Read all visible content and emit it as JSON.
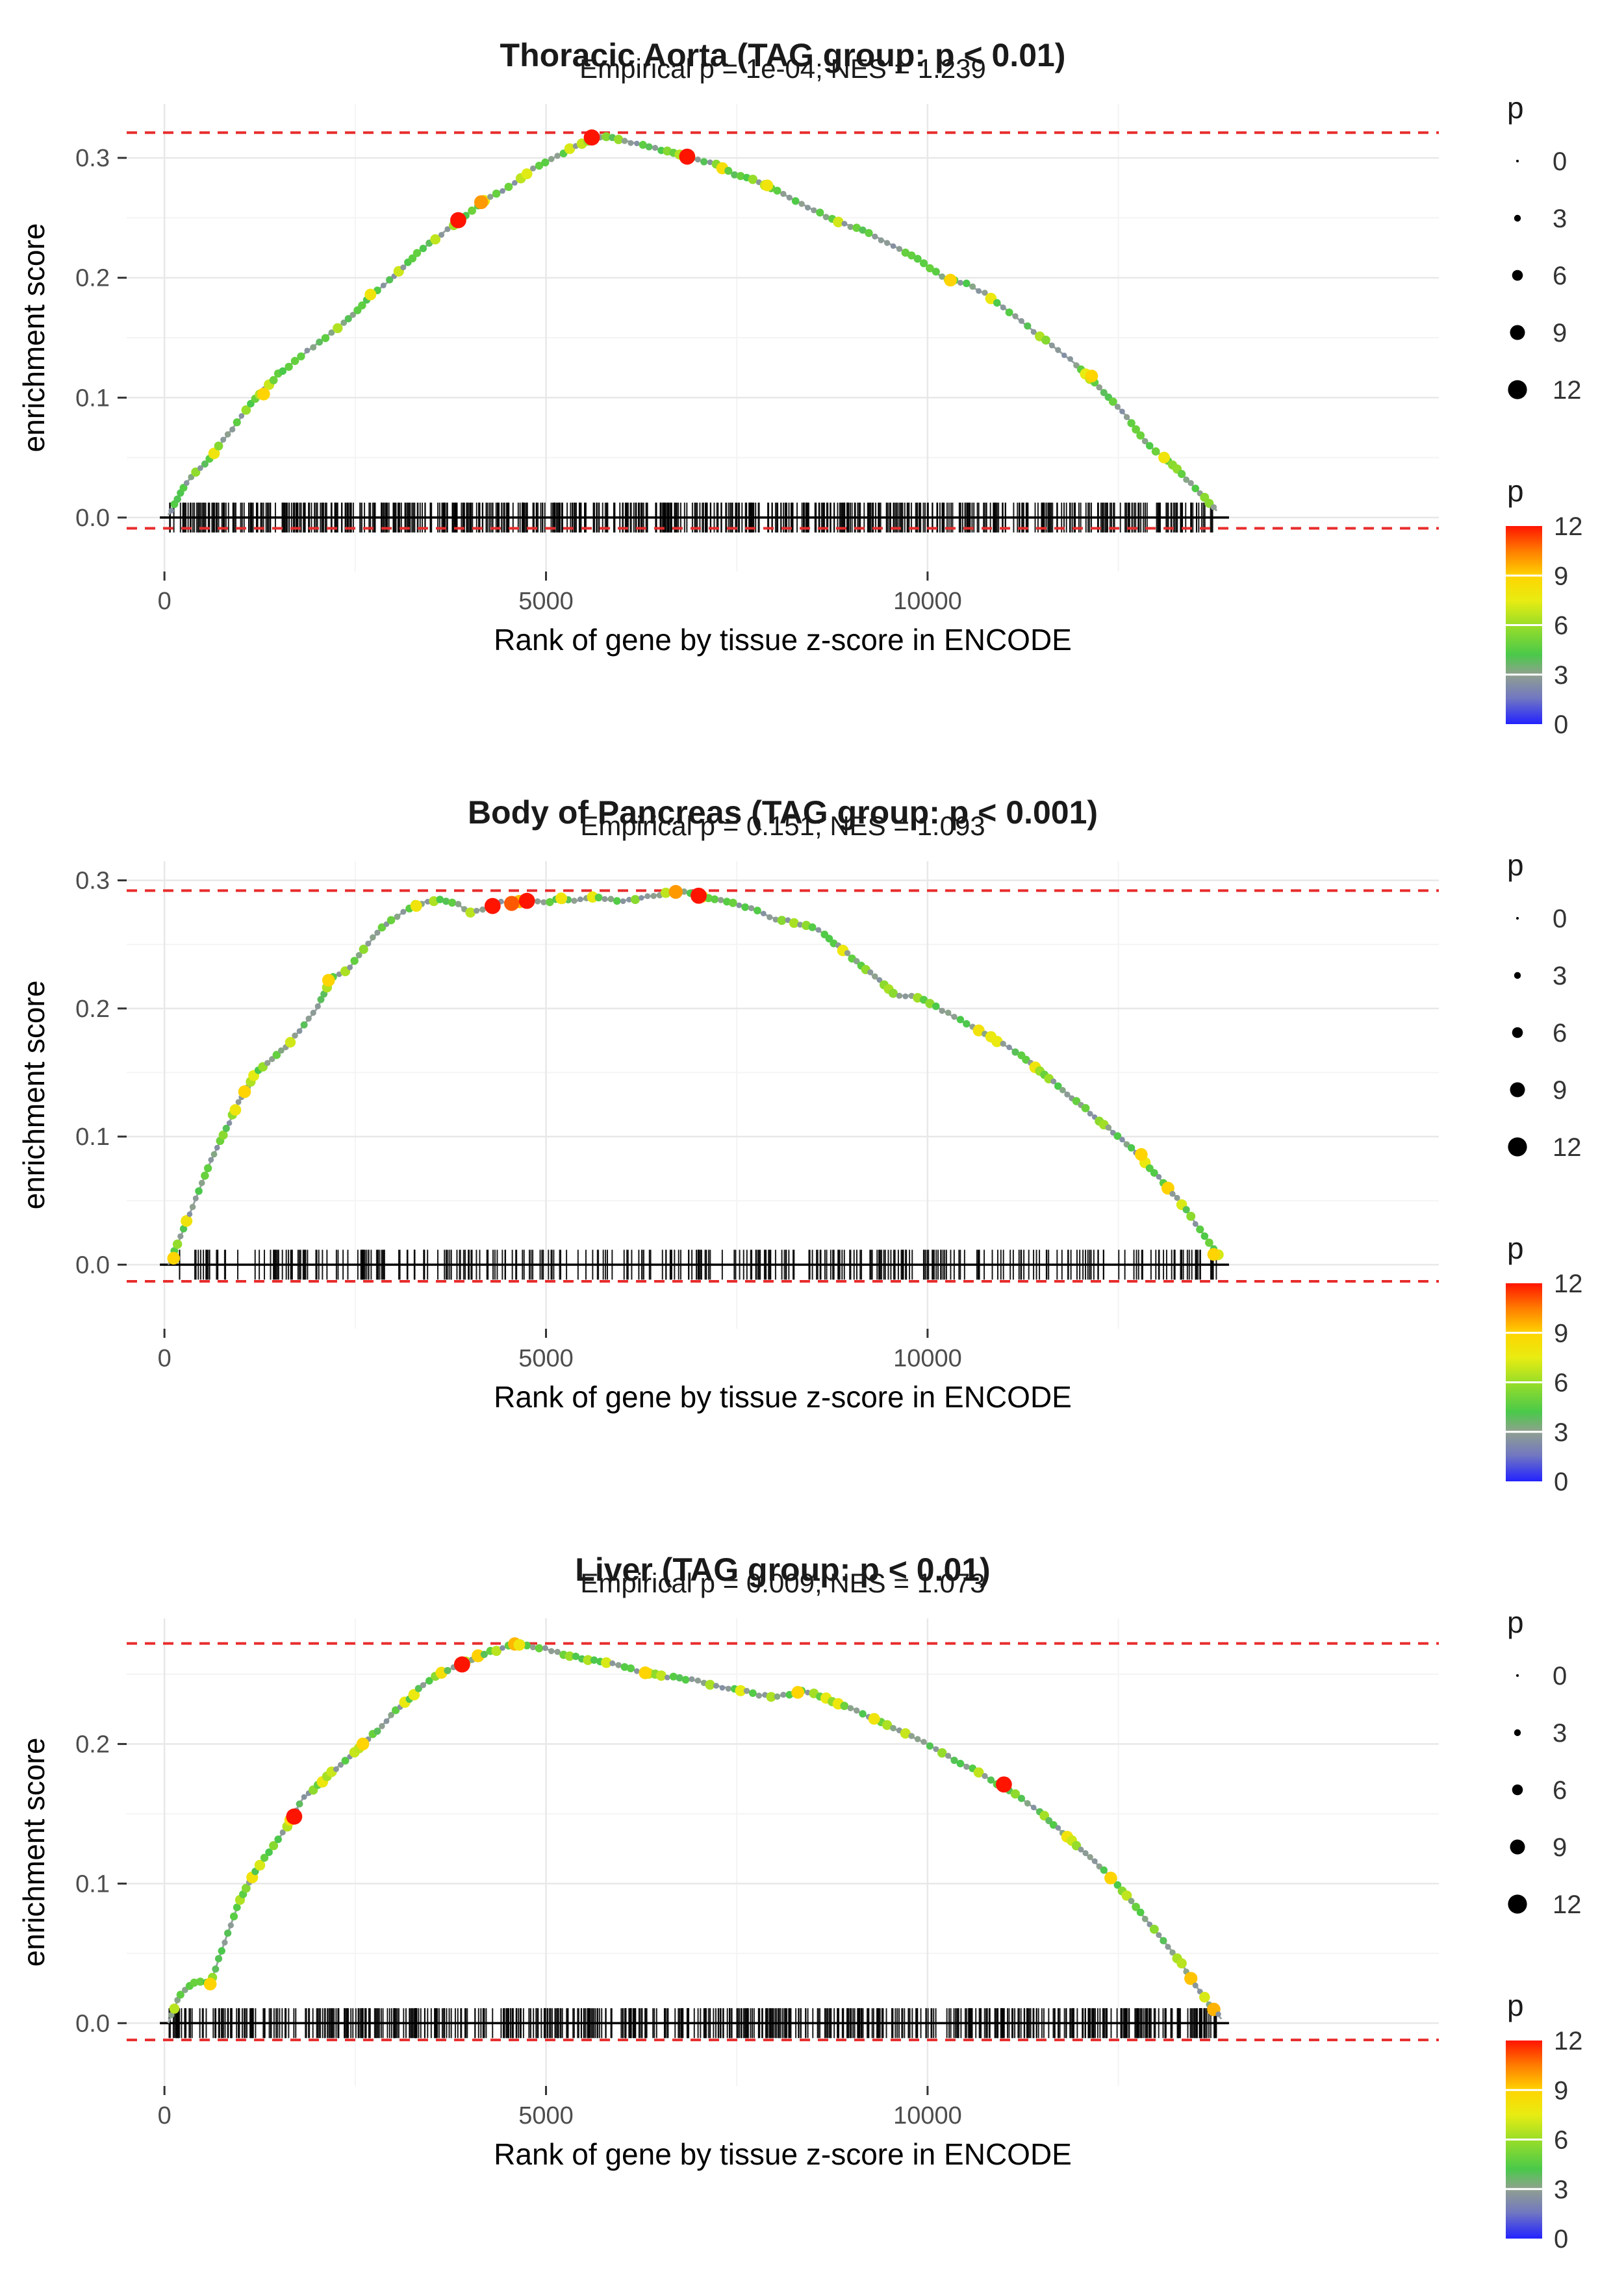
{
  "legend_size": {
    "title": "p",
    "values": [
      0,
      3,
      6,
      9,
      12
    ]
  },
  "legend_color": {
    "title": "p",
    "ticks": [
      12,
      9,
      6,
      3,
      0
    ],
    "stops": [
      {
        "v": 0,
        "c": "#2222ff"
      },
      {
        "v": 1.6,
        "c": "#7278c0"
      },
      {
        "v": 3,
        "c": "#90a090"
      },
      {
        "v": 4.2,
        "c": "#4ac94a"
      },
      {
        "v": 6,
        "c": "#9ade28"
      },
      {
        "v": 7.5,
        "c": "#e8ec12"
      },
      {
        "v": 9,
        "c": "#ffd400"
      },
      {
        "v": 10.5,
        "c": "#ff7c00"
      },
      {
        "v": 12,
        "c": "#ff1400"
      }
    ]
  },
  "style": {
    "dashed_line_color": "#e82c2c",
    "curve_line_color": "#9aa3a3",
    "grid_major_color": "#e8e8e8",
    "grid_minor_color": "#f4f4f4",
    "rug_color": "#000000"
  },
  "chart_data": [
    {
      "type": "line",
      "title": "Thoracic Aorta (TAG group: p < 0.01)",
      "subtitle": "Empirical p = 1e-04; NES = 1.239",
      "xlabel": "Rank of gene by tissue z-score in ENCODE",
      "ylabel": "enrichment score",
      "xticks": [
        0,
        5000,
        10000
      ],
      "yticks": [
        0.0,
        0.1,
        0.2,
        0.3
      ],
      "xlim": [
        -495,
        16700
      ],
      "ylim": [
        -0.045,
        0.345
      ],
      "hline_top": 0.321,
      "hline_bottom": -0.009,
      "rug": {
        "seed": 101,
        "count": 700
      },
      "dot_seed": 7,
      "curve": [
        [
          50,
          0.002
        ],
        [
          300,
          0.03
        ],
        [
          600,
          0.05
        ],
        [
          900,
          0.075
        ],
        [
          1200,
          0.1
        ],
        [
          1500,
          0.12
        ],
        [
          1800,
          0.135
        ],
        [
          2100,
          0.15
        ],
        [
          2400,
          0.165
        ],
        [
          2700,
          0.185
        ],
        [
          3000,
          0.2
        ],
        [
          3300,
          0.22
        ],
        [
          3600,
          0.235
        ],
        [
          3900,
          0.25
        ],
        [
          4200,
          0.265
        ],
        [
          4500,
          0.275
        ],
        [
          4800,
          0.29
        ],
        [
          5100,
          0.3
        ],
        [
          5400,
          0.31
        ],
        [
          5700,
          0.318
        ],
        [
          6000,
          0.315
        ],
        [
          6300,
          0.31
        ],
        [
          6600,
          0.305
        ],
        [
          6900,
          0.3
        ],
        [
          7200,
          0.295
        ],
        [
          7500,
          0.285
        ],
        [
          7800,
          0.28
        ],
        [
          8100,
          0.27
        ],
        [
          8400,
          0.26
        ],
        [
          8700,
          0.25
        ],
        [
          9000,
          0.243
        ],
        [
          9300,
          0.235
        ],
        [
          9600,
          0.225
        ],
        [
          9900,
          0.215
        ],
        [
          10200,
          0.2
        ],
        [
          10500,
          0.195
        ],
        [
          10800,
          0.185
        ],
        [
          11100,
          0.17
        ],
        [
          11400,
          0.155
        ],
        [
          11700,
          0.14
        ],
        [
          12000,
          0.125
        ],
        [
          12300,
          0.105
        ],
        [
          12600,
          0.085
        ],
        [
          12900,
          0.06
        ],
        [
          13200,
          0.045
        ],
        [
          13500,
          0.025
        ],
        [
          13800,
          0.005
        ]
      ],
      "markers": [
        {
          "x": 1300,
          "y": 0.103,
          "p": 9
        },
        {
          "x": 2700,
          "y": 0.186,
          "p": 8
        },
        {
          "x": 3850,
          "y": 0.248,
          "p": 12
        },
        {
          "x": 4150,
          "y": 0.263,
          "p": 10
        },
        {
          "x": 5600,
          "y": 0.317,
          "p": 12
        },
        {
          "x": 6850,
          "y": 0.301,
          "p": 12
        },
        {
          "x": 7900,
          "y": 0.277,
          "p": 8
        },
        {
          "x": 10300,
          "y": 0.198,
          "p": 9
        },
        {
          "x": 12150,
          "y": 0.118,
          "p": 9
        },
        {
          "x": 13100,
          "y": 0.05,
          "p": 8
        }
      ]
    },
    {
      "type": "line",
      "title": "Body of Pancreas (TAG group: p < 0.001)",
      "subtitle": "Empirical p = 0.151; NES = 1.093",
      "xlabel": "Rank of gene by tissue z-score in ENCODE",
      "ylabel": "enrichment score",
      "xticks": [
        0,
        5000,
        10000
      ],
      "yticks": [
        0.0,
        0.1,
        0.2,
        0.3
      ],
      "xlim": [
        -495,
        16700
      ],
      "ylim": [
        -0.05,
        0.315
      ],
      "hline_top": 0.292,
      "hline_bottom": -0.013,
      "rug": {
        "seed": 202,
        "count": 340
      },
      "dot_seed": 8,
      "curve": [
        [
          50,
          0.0
        ],
        [
          200,
          0.02
        ],
        [
          400,
          0.05
        ],
        [
          600,
          0.08
        ],
        [
          800,
          0.105
        ],
        [
          1000,
          0.13
        ],
        [
          1200,
          0.15
        ],
        [
          1400,
          0.16
        ],
        [
          1600,
          0.17
        ],
        [
          1800,
          0.185
        ],
        [
          2000,
          0.2
        ],
        [
          2200,
          0.225
        ],
        [
          2400,
          0.23
        ],
        [
          2600,
          0.245
        ],
        [
          2800,
          0.26
        ],
        [
          3000,
          0.27
        ],
        [
          3200,
          0.278
        ],
        [
          3400,
          0.283
        ],
        [
          3600,
          0.285
        ],
        [
          3800,
          0.283
        ],
        [
          4000,
          0.275
        ],
        [
          4200,
          0.278
        ],
        [
          4400,
          0.283
        ],
        [
          4600,
          0.282
        ],
        [
          4800,
          0.285
        ],
        [
          5000,
          0.283
        ],
        [
          5200,
          0.286
        ],
        [
          5400,
          0.284
        ],
        [
          5600,
          0.287
        ],
        [
          5800,
          0.285
        ],
        [
          6000,
          0.284
        ],
        [
          6200,
          0.286
        ],
        [
          6400,
          0.288
        ],
        [
          6600,
          0.29
        ],
        [
          6800,
          0.292
        ],
        [
          7000,
          0.288
        ],
        [
          7200,
          0.285
        ],
        [
          7400,
          0.283
        ],
        [
          7600,
          0.28
        ],
        [
          7800,
          0.275
        ],
        [
          8000,
          0.27
        ],
        [
          8200,
          0.268
        ],
        [
          8400,
          0.265
        ],
        [
          8600,
          0.26
        ],
        [
          8800,
          0.25
        ],
        [
          9000,
          0.24
        ],
        [
          9200,
          0.23
        ],
        [
          9400,
          0.22
        ],
        [
          9600,
          0.21
        ],
        [
          9800,
          0.21
        ],
        [
          10000,
          0.205
        ],
        [
          10300,
          0.195
        ],
        [
          10600,
          0.185
        ],
        [
          10900,
          0.175
        ],
        [
          11200,
          0.165
        ],
        [
          11500,
          0.15
        ],
        [
          11800,
          0.135
        ],
        [
          12100,
          0.12
        ],
        [
          12400,
          0.105
        ],
        [
          12700,
          0.09
        ],
        [
          13000,
          0.07
        ],
        [
          13300,
          0.05
        ],
        [
          13600,
          0.025
        ],
        [
          13850,
          0.005
        ]
      ],
      "markers": [
        {
          "x": 120,
          "y": 0.005,
          "p": 9
        },
        {
          "x": 1050,
          "y": 0.135,
          "p": 9
        },
        {
          "x": 2150,
          "y": 0.222,
          "p": 9
        },
        {
          "x": 3300,
          "y": 0.28,
          "p": 8
        },
        {
          "x": 4300,
          "y": 0.28,
          "p": 12
        },
        {
          "x": 4550,
          "y": 0.282,
          "p": 11
        },
        {
          "x": 4750,
          "y": 0.284,
          "p": 12
        },
        {
          "x": 5200,
          "y": 0.286,
          "p": 8
        },
        {
          "x": 6700,
          "y": 0.291,
          "p": 10
        },
        {
          "x": 7000,
          "y": 0.288,
          "p": 12
        },
        {
          "x": 12800,
          "y": 0.086,
          "p": 9
        },
        {
          "x": 13750,
          "y": 0.008,
          "p": 9
        }
      ]
    },
    {
      "type": "line",
      "title": "Liver (TAG group: p < 0.01)",
      "subtitle": "Empirical p = 0.009; NES = 1.073",
      "xlabel": "Rank of gene by tissue z-score in ENCODE",
      "ylabel": "enrichment score",
      "xticks": [
        0,
        5000,
        10000
      ],
      "yticks": [
        0.0,
        0.1,
        0.2
      ],
      "xlim": [
        -495,
        16700
      ],
      "ylim": [
        -0.045,
        0.29
      ],
      "hline_top": 0.272,
      "hline_bottom": -0.012,
      "rug": {
        "seed": 303,
        "count": 660
      },
      "dot_seed": 9,
      "curve": [
        [
          50,
          0.0
        ],
        [
          200,
          0.02
        ],
        [
          400,
          0.03
        ],
        [
          600,
          0.028
        ],
        [
          800,
          0.06
        ],
        [
          1000,
          0.09
        ],
        [
          1200,
          0.11
        ],
        [
          1400,
          0.125
        ],
        [
          1600,
          0.14
        ],
        [
          1800,
          0.16
        ],
        [
          2000,
          0.17
        ],
        [
          2200,
          0.18
        ],
        [
          2400,
          0.19
        ],
        [
          2600,
          0.2
        ],
        [
          2800,
          0.21
        ],
        [
          3000,
          0.222
        ],
        [
          3200,
          0.232
        ],
        [
          3400,
          0.243
        ],
        [
          3600,
          0.25
        ],
        [
          3800,
          0.255
        ],
        [
          4000,
          0.26
        ],
        [
          4200,
          0.265
        ],
        [
          4400,
          0.268
        ],
        [
          4600,
          0.272
        ],
        [
          4800,
          0.27
        ],
        [
          5000,
          0.268
        ],
        [
          5200,
          0.265
        ],
        [
          5400,
          0.262
        ],
        [
          5600,
          0.26
        ],
        [
          5800,
          0.258
        ],
        [
          6000,
          0.256
        ],
        [
          6200,
          0.252
        ],
        [
          6400,
          0.25
        ],
        [
          6600,
          0.248
        ],
        [
          6800,
          0.247
        ],
        [
          7000,
          0.245
        ],
        [
          7200,
          0.242
        ],
        [
          7400,
          0.24
        ],
        [
          7600,
          0.238
        ],
        [
          7800,
          0.235
        ],
        [
          8000,
          0.234
        ],
        [
          8200,
          0.236
        ],
        [
          8400,
          0.238
        ],
        [
          8600,
          0.234
        ],
        [
          8800,
          0.23
        ],
        [
          9000,
          0.226
        ],
        [
          9200,
          0.22
        ],
        [
          9400,
          0.215
        ],
        [
          9600,
          0.21
        ],
        [
          9800,
          0.205
        ],
        [
          10000,
          0.2
        ],
        [
          10300,
          0.19
        ],
        [
          10600,
          0.182
        ],
        [
          10900,
          0.172
        ],
        [
          11200,
          0.162
        ],
        [
          11500,
          0.15
        ],
        [
          11800,
          0.135
        ],
        [
          12100,
          0.12
        ],
        [
          12400,
          0.105
        ],
        [
          12700,
          0.085
        ],
        [
          13000,
          0.065
        ],
        [
          13300,
          0.045
        ],
        [
          13600,
          0.02
        ],
        [
          13850,
          0.003
        ]
      ],
      "markers": [
        {
          "x": 600,
          "y": 0.028,
          "p": 9
        },
        {
          "x": 1700,
          "y": 0.148,
          "p": 12
        },
        {
          "x": 2600,
          "y": 0.2,
          "p": 9
        },
        {
          "x": 3900,
          "y": 0.257,
          "p": 12
        },
        {
          "x": 4650,
          "y": 0.271,
          "p": 8
        },
        {
          "x": 6300,
          "y": 0.251,
          "p": 9
        },
        {
          "x": 8300,
          "y": 0.237,
          "p": 9
        },
        {
          "x": 9300,
          "y": 0.218,
          "p": 8
        },
        {
          "x": 11000,
          "y": 0.171,
          "p": 12
        },
        {
          "x": 12400,
          "y": 0.104,
          "p": 9
        }
      ]
    }
  ]
}
